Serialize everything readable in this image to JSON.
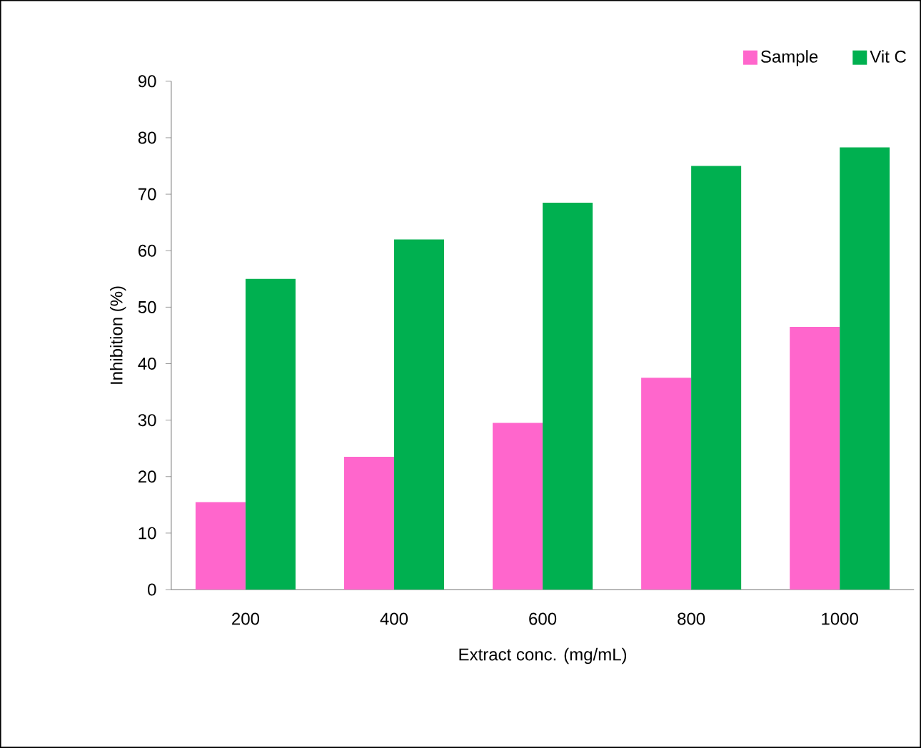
{
  "chart_data": {
    "type": "bar",
    "xlabel": "Extract conc. (mg/mL)",
    "ylabel": "Inhibition (%)",
    "categories": [
      "200",
      "400",
      "600",
      "800",
      "1000"
    ],
    "series": [
      {
        "name": "Sample",
        "color": "#ff66cc",
        "values": [
          15.5,
          23.5,
          29.5,
          37.5,
          46.5
        ]
      },
      {
        "name": "Vit C",
        "color": "#00b050",
        "values": [
          55,
          62,
          68.5,
          75,
          78.3
        ]
      }
    ],
    "ylim": [
      0,
      90
    ],
    "yticks": [
      0,
      10,
      20,
      30,
      40,
      50,
      60,
      70,
      80,
      90
    ],
    "legend": "top right",
    "grid": false
  }
}
